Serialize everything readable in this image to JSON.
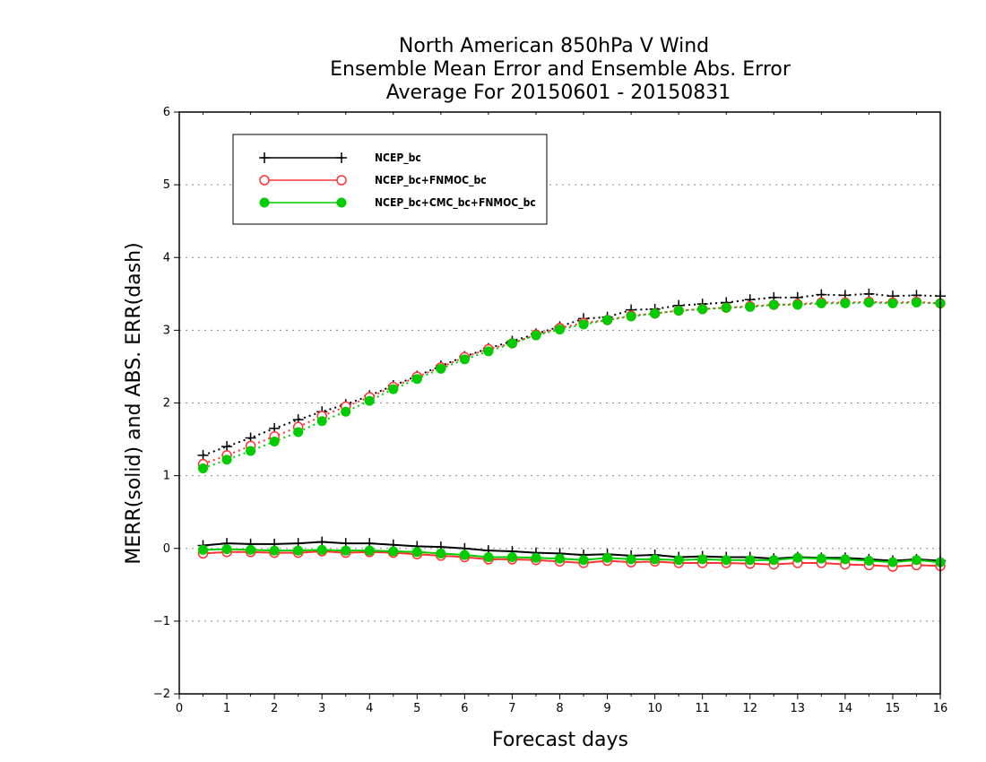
{
  "chart_data": {
    "type": "line",
    "title_lines": [
      "North American 850hPa V Wind",
      "Ensemble Mean Error and Ensemble Abs. Error",
      "Average For 20150601 - 20150831"
    ],
    "xlabel": "Forecast days",
    "ylabel": "MERR(solid) and ABS. ERR(dash)",
    "xlim": [
      0,
      16
    ],
    "ylim": [
      -2,
      6
    ],
    "x_ticks": [
      "0",
      "1",
      "2",
      "3",
      "4",
      "5",
      "6",
      "7",
      "8",
      "9",
      "10",
      "11",
      "12",
      "13",
      "14",
      "15",
      "16"
    ],
    "y_ticks": [
      "−2",
      "−1",
      "0",
      "1",
      "2",
      "3",
      "4",
      "5",
      "6"
    ],
    "grid": "horizontal dotted",
    "legend_position": "top-left",
    "x": [
      0.5,
      1,
      1.5,
      2,
      2.5,
      3,
      3.5,
      4,
      4.5,
      5,
      5.5,
      6,
      6.5,
      7,
      7.5,
      8,
      8.5,
      9,
      9.5,
      10,
      10.5,
      11,
      11.5,
      12,
      12.5,
      13,
      13.5,
      14,
      14.5,
      15,
      15.5,
      16
    ],
    "series": [
      {
        "name": "NCEP_bc",
        "color": "#000000",
        "marker": "plus",
        "merr": [
          0.04,
          0.07,
          0.06,
          0.06,
          0.07,
          0.09,
          0.07,
          0.07,
          0.05,
          0.03,
          0.02,
          0.0,
          -0.03,
          -0.04,
          -0.06,
          -0.07,
          -0.09,
          -0.08,
          -0.1,
          -0.09,
          -0.12,
          -0.11,
          -0.12,
          -0.12,
          -0.14,
          -0.12,
          -0.13,
          -0.13,
          -0.15,
          -0.17,
          -0.15,
          -0.17
        ],
        "abs_err": [
          1.28,
          1.4,
          1.52,
          1.65,
          1.77,
          1.88,
          1.98,
          2.1,
          2.24,
          2.37,
          2.51,
          2.64,
          2.75,
          2.85,
          2.95,
          3.05,
          3.16,
          3.18,
          3.28,
          3.29,
          3.34,
          3.36,
          3.38,
          3.42,
          3.45,
          3.45,
          3.49,
          3.48,
          3.5,
          3.47,
          3.48,
          3.47
        ]
      },
      {
        "name": "NCEP_bc+FNMOC_bc",
        "color": "#ff3333",
        "marker": "open-circle",
        "merr": [
          -0.07,
          -0.05,
          -0.05,
          -0.06,
          -0.06,
          -0.04,
          -0.06,
          -0.05,
          -0.06,
          -0.08,
          -0.1,
          -0.12,
          -0.15,
          -0.15,
          -0.16,
          -0.18,
          -0.2,
          -0.17,
          -0.19,
          -0.18,
          -0.2,
          -0.2,
          -0.2,
          -0.21,
          -0.22,
          -0.2,
          -0.2,
          -0.22,
          -0.23,
          -0.25,
          -0.23,
          -0.24
        ],
        "abs_err": [
          1.16,
          1.28,
          1.41,
          1.54,
          1.67,
          1.82,
          1.95,
          2.08,
          2.22,
          2.36,
          2.49,
          2.63,
          2.74,
          2.82,
          2.94,
          3.03,
          3.1,
          3.14,
          3.2,
          3.23,
          3.27,
          3.29,
          3.31,
          3.33,
          3.35,
          3.36,
          3.38,
          3.38,
          3.39,
          3.38,
          3.39,
          3.37
        ]
      },
      {
        "name": "NCEP_bc+CMC_bc+FNMOC_bc",
        "color": "#00cc00",
        "marker": "filled-circle",
        "merr": [
          -0.02,
          -0.01,
          -0.02,
          -0.03,
          -0.03,
          -0.02,
          -0.03,
          -0.03,
          -0.04,
          -0.05,
          -0.07,
          -0.09,
          -0.12,
          -0.12,
          -0.13,
          -0.14,
          -0.16,
          -0.13,
          -0.15,
          -0.15,
          -0.16,
          -0.15,
          -0.16,
          -0.16,
          -0.16,
          -0.13,
          -0.14,
          -0.15,
          -0.17,
          -0.19,
          -0.16,
          -0.19
        ],
        "abs_err": [
          1.1,
          1.22,
          1.34,
          1.47,
          1.6,
          1.75,
          1.88,
          2.03,
          2.19,
          2.33,
          2.47,
          2.6,
          2.71,
          2.82,
          2.93,
          3.01,
          3.08,
          3.14,
          3.19,
          3.23,
          3.27,
          3.29,
          3.31,
          3.32,
          3.35,
          3.35,
          3.37,
          3.37,
          3.38,
          3.37,
          3.38,
          3.37
        ]
      }
    ]
  }
}
